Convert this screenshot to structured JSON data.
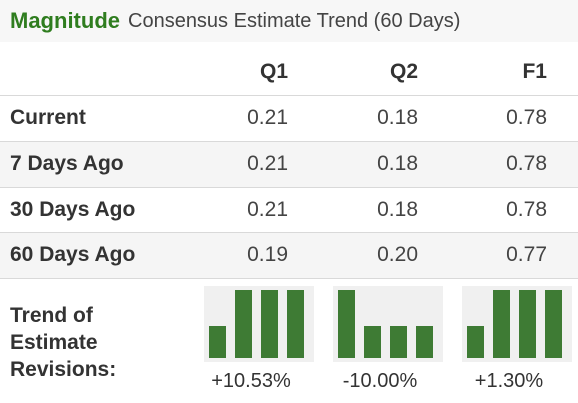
{
  "title": {
    "brand": "Magnitude",
    "subtitle": "Consensus Estimate Trend (60 Days)"
  },
  "columns": [
    "Q1",
    "Q2",
    "F1"
  ],
  "rows": [
    {
      "label": "Current",
      "values": [
        "0.21",
        "0.18",
        "0.78"
      ]
    },
    {
      "label": "7 Days Ago",
      "values": [
        "0.21",
        "0.18",
        "0.78"
      ]
    },
    {
      "label": "30 Days Ago",
      "values": [
        "0.21",
        "0.18",
        "0.78"
      ]
    },
    {
      "label": "60 Days Ago",
      "values": [
        "0.19",
        "0.20",
        "0.77"
      ]
    }
  ],
  "trend": {
    "label_lines": [
      "Trend of",
      "Estimate",
      "Revisions:"
    ],
    "columns": [
      {
        "change": "+10.53%",
        "bar_levels": [
          0.19,
          0.21,
          0.21,
          0.21
        ]
      },
      {
        "change": "-10.00%",
        "bar_levels": [
          0.2,
          0.18,
          0.18,
          0.18
        ]
      },
      {
        "change": "+1.30%",
        "bar_levels": [
          0.77,
          0.78,
          0.78,
          0.78
        ]
      }
    ]
  },
  "colors": {
    "brand_green": "#2f7d1f",
    "bar_green": "#3e7b34"
  }
}
